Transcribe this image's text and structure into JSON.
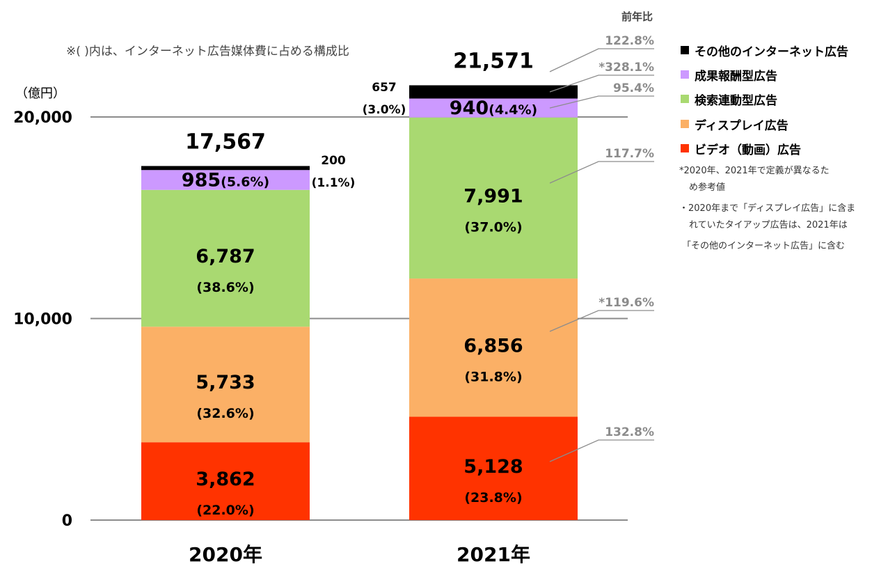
{
  "chart_data": {
    "type": "bar",
    "stacked": true,
    "note_top": "※(   )内は、インターネット広告媒体費に占める構成比",
    "unit_label": "（億円）",
    "yoy_header": "前年比",
    "ylim": [
      0,
      20000
    ],
    "y_ticks": [
      {
        "value": 0,
        "label": "0"
      },
      {
        "value": 10000,
        "label": "10,000"
      },
      {
        "value": 20000,
        "label": "20,000"
      }
    ],
    "categories": [
      "2020年",
      "2021年"
    ],
    "totals": [
      {
        "value": 17567,
        "label": "17,567"
      },
      {
        "value": 21571,
        "label": "21,571"
      }
    ],
    "series": [
      {
        "name": "ビデオ（動画）広告",
        "color": "#ff3300",
        "values": [
          3862,
          5128
        ],
        "value_labels": [
          "3,862",
          "5,128"
        ],
        "share_labels": [
          "(22.0%)",
          "(23.8%)"
        ],
        "yoy": "132.8%"
      },
      {
        "name": "ディスプレイ広告",
        "color": "#fbb066",
        "values": [
          5733,
          6856
        ],
        "value_labels": [
          "5,733",
          "6,856"
        ],
        "share_labels": [
          "(32.6%)",
          "(31.8%)"
        ],
        "yoy": "*119.6%"
      },
      {
        "name": "検索連動型広告",
        "color": "#a9d971",
        "values": [
          6787,
          7991
        ],
        "value_labels": [
          "6,787",
          "7,991"
        ],
        "share_labels": [
          "(38.6%)",
          "(37.0%)"
        ],
        "yoy": "117.7%"
      },
      {
        "name": "成果報酬型広告",
        "color": "#cc99ff",
        "values": [
          985,
          940
        ],
        "value_labels": [
          "985",
          "940"
        ],
        "share_labels": [
          "(5.6%)",
          "(4.4%)"
        ],
        "yoy": "95.4%"
      },
      {
        "name": "その他のインターネット広告",
        "color": "#000000",
        "values": [
          200,
          657
        ],
        "value_labels": [
          "200",
          "657"
        ],
        "share_labels": [
          "(1.1%)",
          "(3.0%)"
        ],
        "yoy": "*328.1%"
      }
    ],
    "total_yoy": "122.8%",
    "legend": {
      "order": [
        "その他のインターネット広告",
        "成果報酬型広告",
        "検索連動型広告",
        "ディスプレイ広告",
        "ビデオ（動画）広告"
      ]
    },
    "footnotes": [
      "*2020年、2021年で定義が異なるた",
      "め参考値",
      "・2020年まで「ディスプレイ広告」に含ま",
      "れていたタイアップ広告は、2021年は",
      "「その他のインターネット広告」に含む"
    ]
  }
}
